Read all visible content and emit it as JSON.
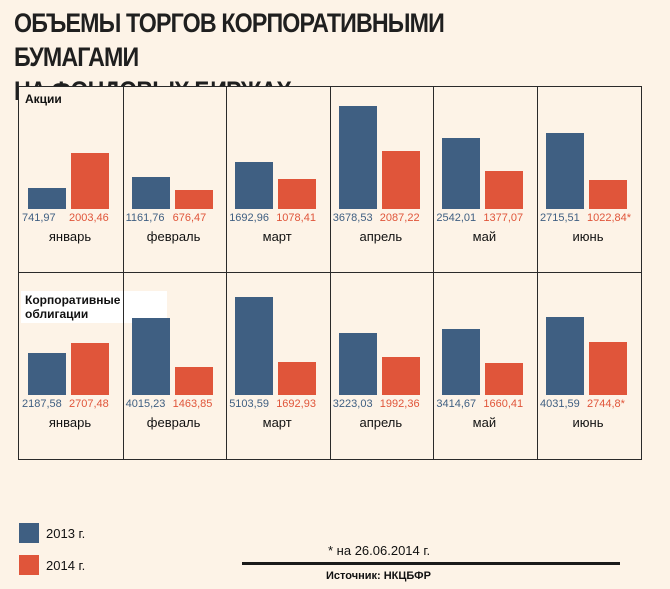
{
  "title": {
    "line1": "ОБЪЕМЫ ТОРГОВ КОРПОРАТИВНЫМИ БУМАГАМИ",
    "line2": "НА ФОНДОВЫХ БИРЖАХ"
  },
  "chart_data": [
    {
      "type": "bar",
      "title": "Акции",
      "categories": [
        "январь",
        "февраль",
        "март",
        "апрель",
        "май",
        "июнь"
      ],
      "series": [
        {
          "name": "2013 г.",
          "values": [
            741.97,
            1161.76,
            1692.96,
            3678.53,
            2542.01,
            2715.51
          ],
          "labels": [
            "741,97",
            "1161,76",
            "1692,96",
            "3678,53",
            "2542,01",
            "2715,51"
          ]
        },
        {
          "name": "2014 г.",
          "values": [
            2003.46,
            676.47,
            1078.41,
            2087.22,
            1377.07,
            1022.84
          ],
          "labels": [
            "2003,46",
            "676,47",
            "1078,41",
            "2087,22",
            "1377,07",
            "1022,84*"
          ]
        }
      ],
      "ylim": [
        0,
        3800
      ]
    },
    {
      "type": "bar",
      "title": "Корпоративные облигации",
      "categories": [
        "январь",
        "февраль",
        "март",
        "апрель",
        "май",
        "июнь"
      ],
      "series": [
        {
          "name": "2013 г.",
          "values": [
            2187.58,
            4015.23,
            5103.59,
            3223.03,
            3414.67,
            4031.59
          ],
          "labels": [
            "2187,58",
            "4015,23",
            "5103,59",
            "3223,03",
            "3414,67",
            "4031,59"
          ]
        },
        {
          "name": "2014 г.",
          "values": [
            2707.48,
            1463.85,
            1692.93,
            1992.36,
            1660.41,
            2744.8
          ],
          "labels": [
            "2707,48",
            "1463,85",
            "1692,93",
            "1992,36",
            "1660,41",
            "2744,8*"
          ]
        }
      ],
      "ylim": [
        0,
        5500
      ]
    }
  ],
  "panel_labels": {
    "stocks": "Акции",
    "bonds_line1": "Корпоративные",
    "bonds_line2": "облигации"
  },
  "legend": [
    {
      "label": "2013 г.",
      "color": "#3f5f82"
    },
    {
      "label": "2014 г.",
      "color": "#e0553a"
    }
  ],
  "footnote": "* на 26.06.2014 г.",
  "source": "Источник: НКЦБФР"
}
